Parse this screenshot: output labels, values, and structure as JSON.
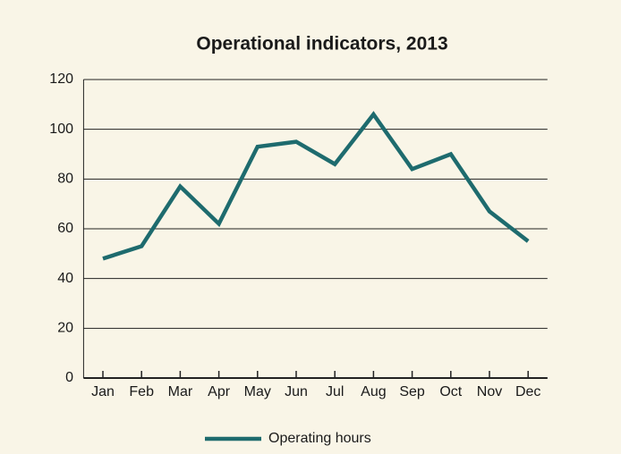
{
  "chart_data": {
    "type": "line",
    "title": "Operational indicators, 2013",
    "categories": [
      "Jan",
      "Feb",
      "Mar",
      "Apr",
      "May",
      "Jun",
      "Jul",
      "Aug",
      "Sep",
      "Oct",
      "Nov",
      "Dec"
    ],
    "series": [
      {
        "name": "Operating hours",
        "color": "#1e6b6e",
        "values": [
          48,
          53,
          77,
          62,
          93,
          95,
          86,
          106,
          84,
          90,
          67,
          55
        ]
      }
    ],
    "ylim": [
      0,
      120
    ],
    "yticks": [
      0,
      20,
      40,
      60,
      80,
      100,
      120
    ],
    "grid": true,
    "legend": "bottom"
  }
}
